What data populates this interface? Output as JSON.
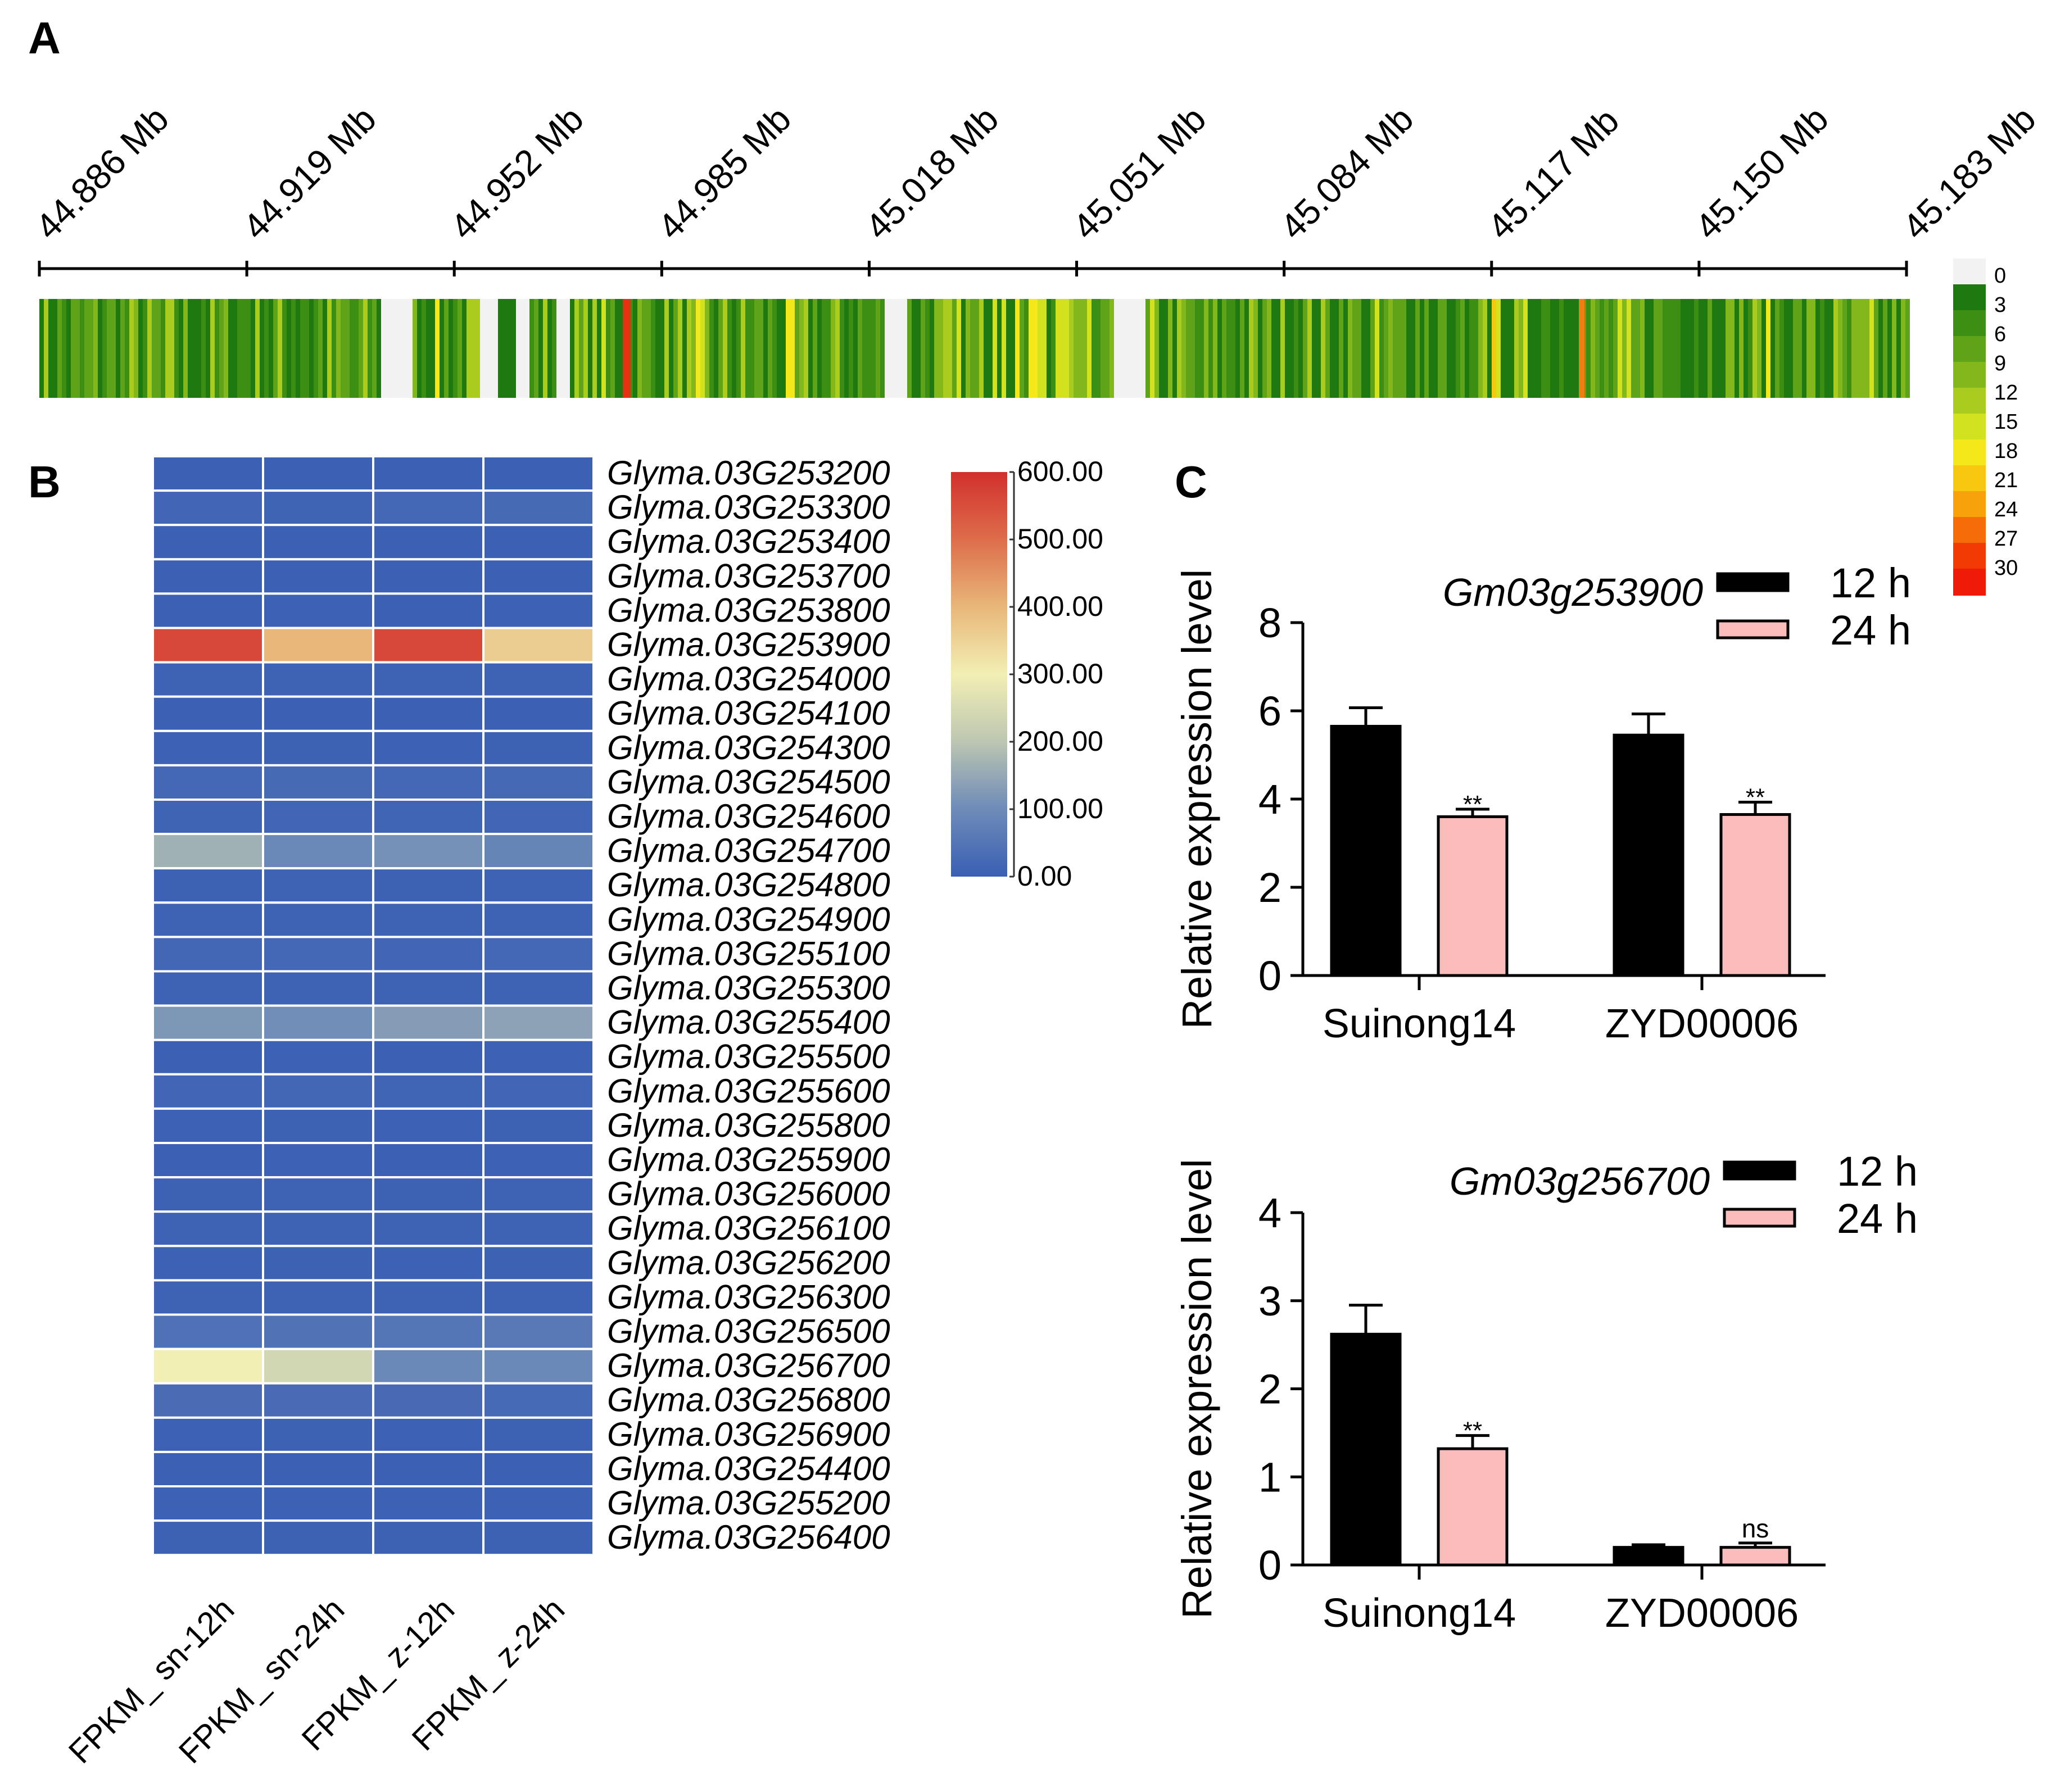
{
  "panels": {
    "a": "A",
    "b": "B",
    "c": "C"
  },
  "chart_data": [
    {
      "id": "A",
      "type": "heatmap",
      "title": "",
      "subtype": "chromosome density strip",
      "x_ticks": [
        "44.886 Mb",
        "44.919 Mb",
        "44.952 Mb",
        "44.985 Mb",
        "45.018 Mb",
        "45.051 Mb",
        "45.084 Mb",
        "45.117 Mb",
        "45.150 Mb",
        "45.183 Mb"
      ],
      "xlim": [
        44.886,
        45.183
      ],
      "legend_values": [
        "0",
        "3",
        "6",
        "9",
        "12",
        "15",
        "18",
        "21",
        "24",
        "27",
        "30"
      ],
      "legend_colors": [
        "#f2f2f2",
        "#1e7a10",
        "#3d8f14",
        "#5fa418",
        "#83b81c",
        "#a9cc1e",
        "#d2e21f",
        "#f5e81a",
        "#f7c80f",
        "#f7a20a",
        "#f56d08",
        "#f23a05",
        "#ef1a08"
      ]
    },
    {
      "id": "B",
      "type": "heatmap",
      "title": "",
      "columns": [
        "FPKM_ sn-12h",
        "FPKM_ sn-24h",
        "FPKM_ z-12h",
        "FPKM_ z-24h"
      ],
      "rows": [
        "Glyma.03G253200",
        "Glyma.03G253300",
        "Glyma.03G253400",
        "Glyma.03G253700",
        "Glyma.03G253800",
        "Glyma.03G253900",
        "Glyma.03G254000",
        "Glyma.03G254100",
        "Glyma.03G254300",
        "Glyma.03G254500",
        "Glyma.03G254600",
        "Glyma.03G254700",
        "Glyma.03G254800",
        "Glyma.03G254900",
        "Glyma.03G255100",
        "Glyma.03G255300",
        "Glyma.03G255400",
        "Glyma.03G255500",
        "Glyma.03G255600",
        "Glyma.03G255800",
        "Glyma.03G255900",
        "Glyma.03G256000",
        "Glyma.03G256100",
        "Glyma.03G256200",
        "Glyma.03G256300",
        "Glyma.03G256500",
        "Glyma.03G256700",
        "Glyma.03G256800",
        "Glyma.03G256900",
        "Glyma.03G254400",
        "Glyma.03G255200",
        "Glyma.03G256400"
      ],
      "values": [
        [
          2,
          3,
          2,
          3
        ],
        [
          15,
          12,
          20,
          25
        ],
        [
          3,
          4,
          3,
          4
        ],
        [
          2,
          2,
          2,
          2
        ],
        [
          4,
          5,
          4,
          5
        ],
        [
          560,
          400,
          560,
          360
        ],
        [
          8,
          10,
          8,
          10
        ],
        [
          3,
          3,
          3,
          3
        ],
        [
          5,
          6,
          5,
          6
        ],
        [
          20,
          25,
          20,
          22
        ],
        [
          12,
          15,
          14,
          16
        ],
        [
          165,
          95,
          110,
          85
        ],
        [
          6,
          7,
          6,
          7
        ],
        [
          8,
          9,
          8,
          9
        ],
        [
          18,
          20,
          16,
          20
        ],
        [
          7,
          8,
          7,
          8
        ],
        [
          120,
          105,
          130,
          140
        ],
        [
          4,
          5,
          4,
          5
        ],
        [
          15,
          17,
          14,
          16
        ],
        [
          5,
          6,
          5,
          6
        ],
        [
          4,
          5,
          4,
          5
        ],
        [
          6,
          7,
          6,
          7
        ],
        [
          8,
          9,
          8,
          9
        ],
        [
          5,
          6,
          5,
          6
        ],
        [
          7,
          8,
          7,
          8
        ],
        [
          40,
          45,
          50,
          60
        ],
        [
          300,
          240,
          95,
          95
        ],
        [
          30,
          28,
          26,
          24
        ],
        [
          5,
          6,
          5,
          6
        ],
        [
          4,
          4,
          4,
          4
        ],
        [
          5,
          5,
          5,
          5
        ],
        [
          6,
          6,
          6,
          6
        ]
      ],
      "colorbar_ticks": [
        "600.00",
        "500.00",
        "400.00",
        "300.00",
        "200.00",
        "100.00",
        "0.00"
      ],
      "vlim": [
        0,
        600
      ]
    },
    {
      "id": "C1",
      "type": "bar",
      "title": "Gm03g253900",
      "ylabel": "Relative expression level",
      "xlabel": "",
      "categories": [
        "Suinong14",
        "ZYD00006"
      ],
      "series": [
        {
          "name": "12 h",
          "values": [
            5.65,
            5.45
          ],
          "errors": [
            0.42,
            0.48
          ],
          "color": "#000000",
          "marks": [
            "",
            ""
          ]
        },
        {
          "name": "24 h",
          "values": [
            3.6,
            3.65
          ],
          "errors": [
            0.17,
            0.28
          ],
          "color": "#fbbcbc",
          "marks": [
            "**",
            "**"
          ]
        }
      ],
      "ylim": [
        0,
        8
      ],
      "yticks": [
        "0",
        "2",
        "4",
        "6",
        "8"
      ]
    },
    {
      "id": "C2",
      "type": "bar",
      "title": "Gm03g256700",
      "ylabel": "Relative expression level",
      "xlabel": "",
      "categories": [
        "Suinong14",
        "ZYD00006"
      ],
      "series": [
        {
          "name": "12 h",
          "values": [
            2.62,
            0.2
          ],
          "errors": [
            0.33,
            0.03
          ],
          "color": "#000000",
          "marks": [
            "",
            ""
          ]
        },
        {
          "name": "24 h",
          "values": [
            1.32,
            0.2
          ],
          "errors": [
            0.15,
            0.05
          ],
          "color": "#fbbcbc",
          "marks": [
            "**",
            "ns"
          ]
        }
      ],
      "ylim": [
        0,
        4
      ],
      "yticks": [
        "0",
        "1",
        "2",
        "3",
        "4"
      ]
    }
  ]
}
